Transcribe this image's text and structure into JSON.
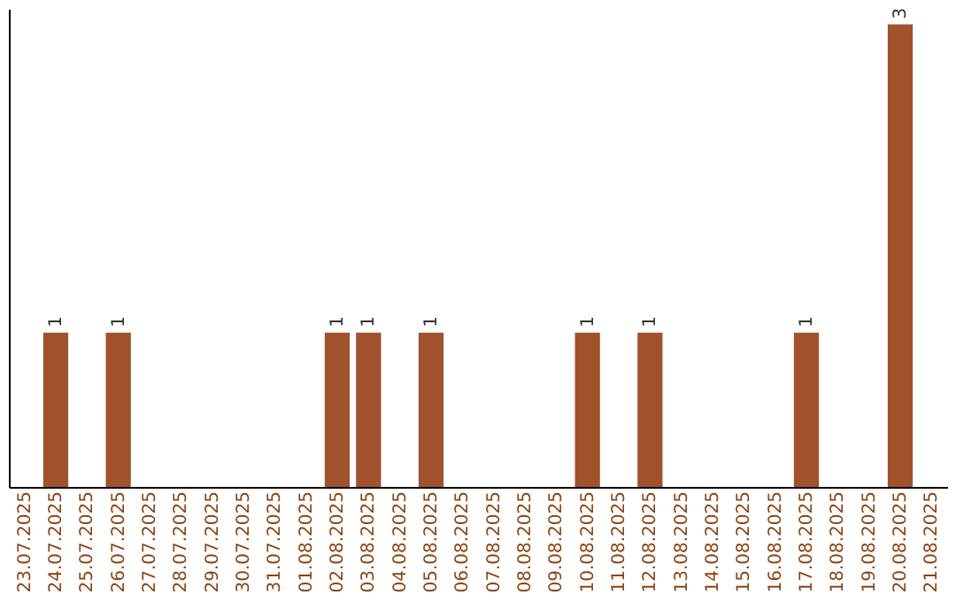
{
  "chart_data": {
    "type": "bar",
    "categories": [
      "23.07.2025",
      "24.07.2025",
      "25.07.2025",
      "26.07.2025",
      "27.07.2025",
      "28.07.2025",
      "29.07.2025",
      "30.07.2025",
      "31.07.2025",
      "01.08.2025",
      "02.08.2025",
      "03.08.2025",
      "04.08.2025",
      "05.08.2025",
      "06.08.2025",
      "07.08.2025",
      "08.08.2025",
      "09.08.2025",
      "10.08.2025",
      "11.08.2025",
      "12.08.2025",
      "13.08.2025",
      "14.08.2025",
      "15.08.2025",
      "16.08.2025",
      "17.08.2025",
      "18.08.2025",
      "19.08.2025",
      "20.08.2025",
      "21.08.2025"
    ],
    "values": [
      0,
      1,
      0,
      1,
      0,
      0,
      0,
      0,
      0,
      0,
      1,
      1,
      0,
      1,
      0,
      0,
      0,
      0,
      1,
      0,
      1,
      0,
      0,
      0,
      0,
      1,
      0,
      0,
      3,
      0
    ],
    "value_labels": [
      null,
      "1",
      null,
      "1",
      null,
      null,
      null,
      null,
      null,
      null,
      "1",
      "1",
      null,
      "1",
      null,
      null,
      null,
      null,
      "1",
      null,
      "1",
      null,
      null,
      null,
      null,
      "1",
      null,
      null,
      "3",
      null
    ],
    "color": "#a0522d",
    "ylim": [
      0,
      3.1
    ],
    "tick_labels": "x"
  }
}
